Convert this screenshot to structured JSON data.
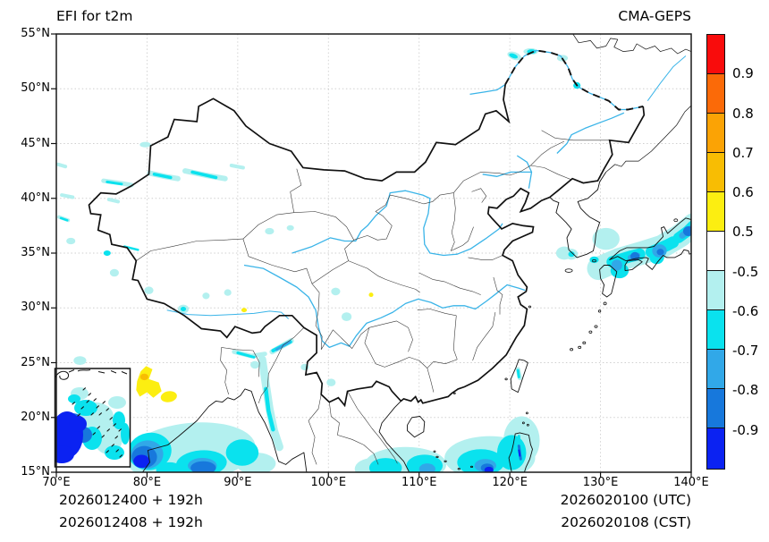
{
  "header": {
    "title_left": "EFI for t2m",
    "title_right": "CMA-GEPS"
  },
  "axes": {
    "x_ticks": [
      "70°E",
      "80°E",
      "90°E",
      "100°E",
      "110°E",
      "120°E",
      "130°E",
      "140°E"
    ],
    "y_ticks": [
      "55°N",
      "50°N",
      "45°N",
      "40°N",
      "35°N",
      "30°N",
      "25°N",
      "20°N",
      "15°N"
    ],
    "x_range_deg": [
      70,
      140
    ],
    "y_range_deg": [
      15,
      55
    ]
  },
  "colorbar": {
    "labels": [
      "0.9",
      "0.8",
      "0.7",
      "0.6",
      "0.5",
      "-0.5",
      "-0.6",
      "-0.7",
      "-0.8",
      "-0.9"
    ],
    "colors": [
      "#f90c0c",
      "#fb6a08",
      "#fba305",
      "#f8bd03",
      "#fcee11",
      "#ffffff",
      "#b3f0ef",
      "#0ae2ee",
      "#31a8e8",
      "#1778dc",
      "#0b22f2"
    ]
  },
  "map_colors": {
    "river": "#3ab4e8",
    "border_national": "#111111",
    "border_province": "#3a3a3a",
    "coastline": "#111111",
    "gridline": "#cfcfcf"
  },
  "footer": {
    "left_line1": "2026012400 + 192h",
    "left_line2": "2026012408 + 192h",
    "right_line1": "2026020100 (UTC)",
    "right_line2": "2026020108 (CST)"
  },
  "chart_data": {
    "type": "map",
    "title": "EFI for t2m",
    "model": "CMA-GEPS",
    "colorbar_boundaries": [
      0.9,
      0.8,
      0.7,
      0.6,
      0.5,
      -0.5,
      -0.6,
      -0.7,
      -0.8,
      -0.9
    ],
    "x_tick_labels": [
      "70°E",
      "80°E",
      "90°E",
      "100°E",
      "110°E",
      "120°E",
      "130°E",
      "140°E"
    ],
    "y_tick_labels": [
      "55°N",
      "50°N",
      "45°N",
      "40°N",
      "35°N",
      "30°N",
      "25°N",
      "20°N",
      "15°N"
    ],
    "init_runs": [
      "2026012400 + 192h",
      "2026012408 + 192h"
    ],
    "valid_times": [
      "2026020100 (UTC)",
      "2026020108 (CST)"
    ]
  }
}
